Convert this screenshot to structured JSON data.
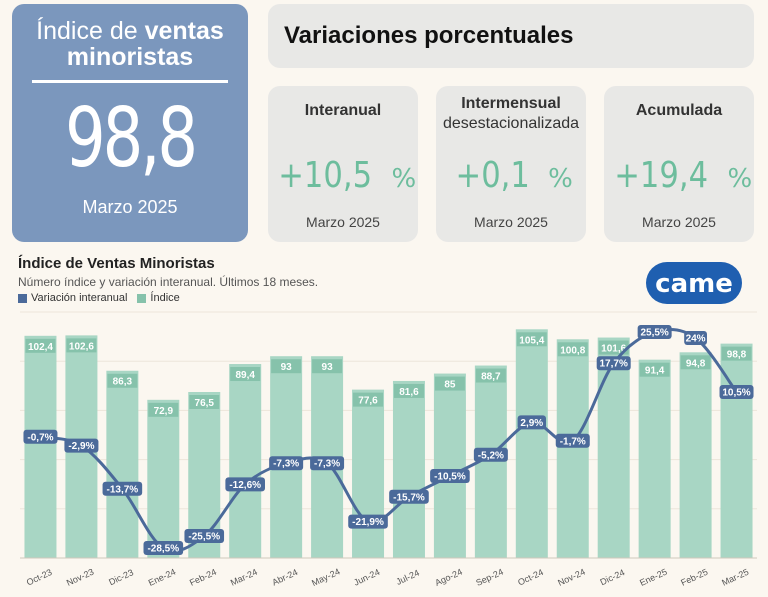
{
  "colors": {
    "main_card": "#7b97bd",
    "accent_green": "#6dbd9d",
    "bar": "#a8d6c4",
    "bar_label_bg": "#86c2ab",
    "line": "#4b6a9a",
    "card_gray": "#e8e8e6"
  },
  "main": {
    "title_light": "Índice de",
    "title_bold": "ventas minoristas",
    "value": "98,8",
    "date": "Marzo 2025"
  },
  "variaciones": {
    "title": "Variaciones porcentuales",
    "cards": [
      {
        "label": "Interanual",
        "sublabel": "",
        "value": "+10,5",
        "unit": "%",
        "date": "Marzo 2025"
      },
      {
        "label": "Intermensual",
        "sublabel": "desestacionalizada",
        "value": "+0,1",
        "unit": "%",
        "date": "Marzo 2025"
      },
      {
        "label": "Acumulada",
        "sublabel": "",
        "value": "+19,4",
        "unit": "%",
        "date": "Marzo 2025"
      }
    ]
  },
  "logo": {
    "text": "came"
  },
  "chart_data": {
    "type": "bar",
    "title": "Índice de Ventas Minoristas",
    "subtitle": "Número índice y variación interanual. Últimos 18 meses.",
    "legend": [
      "Variación interanual",
      "Índice"
    ],
    "categories": [
      "Oct-23",
      "Nov-23",
      "Dic-23",
      "Ene-24",
      "Feb-24",
      "Mar-24",
      "Abr-24",
      "May-24",
      "Jun-24",
      "Jul-24",
      "Ago-24",
      "Sep-24",
      "Oct-24",
      "Nov-24",
      "Dic-24",
      "Ene-25",
      "Feb-25",
      "Mar-25"
    ],
    "series": [
      {
        "name": "Índice",
        "type": "bar",
        "values": [
          102.4,
          102.6,
          86.3,
          72.9,
          76.5,
          89.4,
          93,
          93,
          77.6,
          81.6,
          85,
          88.7,
          105.4,
          100.8,
          101.6,
          91.4,
          94.8,
          98.8
        ],
        "labels": [
          "102,4",
          "102,6",
          "86,3",
          "72,9",
          "76,5",
          "89,4",
          "93",
          "93",
          "77,6",
          "81,6",
          "85",
          "88,7",
          "105,4",
          "100,8",
          "101,6",
          "91,4",
          "94,8",
          "98,8"
        ]
      },
      {
        "name": "Variación interanual",
        "type": "line",
        "values": [
          -0.7,
          -2.9,
          -13.7,
          -28.5,
          -25.5,
          -12.6,
          -7.3,
          -7.3,
          -21.9,
          -15.7,
          -10.5,
          -5.2,
          2.9,
          -1.7,
          17.7,
          25.5,
          24,
          10.5
        ],
        "labels": [
          "-0,7%",
          "-2,9%",
          "-13,7%",
          "-28,5%",
          "-25,5%",
          "-12,6%",
          "-7,3%",
          "-7,3%",
          "-21,9%",
          "-15,7%",
          "-10,5%",
          "-5,2%",
          "2,9%",
          "-1,7%",
          "17,7%",
          "25,5%",
          "24%",
          "10,5%"
        ]
      }
    ]
  }
}
